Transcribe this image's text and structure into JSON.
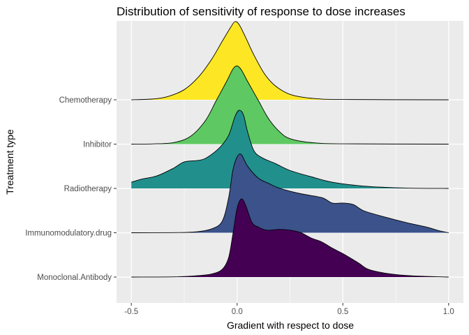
{
  "chart_data": {
    "type": "ridgeline",
    "title": "Distribution of sensitivity of response to dose increases",
    "xlabel": "Gradient with respect to dose",
    "ylabel": "Treatment type",
    "xlim": [
      -0.57,
      1.07
    ],
    "x_ticks": [
      -0.5,
      0.0,
      0.5,
      1.0
    ],
    "x_tick_labels": [
      "-0.5",
      "0.0",
      "0.5",
      "1.0"
    ],
    "grid": true,
    "legend": "none",
    "panel_background": "#ebebeb",
    "grid_color": "#ffffff",
    "categories": [
      "Monoclonal.Antibody",
      "Immunomodulatory.drug",
      "Radiotherapy",
      "Inhibitor",
      "Chemotherapy"
    ],
    "series": [
      {
        "category": "Monoclonal.Antibody",
        "color": "#440154",
        "range": [
          -0.5,
          1.0
        ],
        "density": [
          [
            -0.5,
            0
          ],
          [
            -0.3,
            0.003
          ],
          [
            -0.2,
            0.015
          ],
          [
            -0.12,
            0.04
          ],
          [
            -0.07,
            0.1
          ],
          [
            -0.04,
            0.25
          ],
          [
            -0.02,
            0.55
          ],
          [
            0.0,
            0.88
          ],
          [
            0.02,
            1.0
          ],
          [
            0.04,
            0.92
          ],
          [
            0.07,
            0.7
          ],
          [
            0.1,
            0.64
          ],
          [
            0.14,
            0.6
          ],
          [
            0.2,
            0.61
          ],
          [
            0.25,
            0.6
          ],
          [
            0.3,
            0.57
          ],
          [
            0.35,
            0.5
          ],
          [
            0.4,
            0.45
          ],
          [
            0.45,
            0.37
          ],
          [
            0.5,
            0.3
          ],
          [
            0.55,
            0.22
          ],
          [
            0.58,
            0.17
          ],
          [
            0.62,
            0.1
          ],
          [
            0.7,
            0.05
          ],
          [
            0.8,
            0.02
          ],
          [
            0.9,
            0.008
          ],
          [
            1.0,
            0
          ]
        ]
      },
      {
        "category": "Immunomodulatory.drug",
        "color": "#3b528b",
        "range": [
          -0.5,
          1.0
        ],
        "density": [
          [
            -0.5,
            0
          ],
          [
            -0.3,
            0.002
          ],
          [
            -0.2,
            0.01
          ],
          [
            -0.12,
            0.05
          ],
          [
            -0.07,
            0.15
          ],
          [
            -0.04,
            0.45
          ],
          [
            -0.02,
            0.8
          ],
          [
            0.0,
            0.97
          ],
          [
            0.02,
            1.0
          ],
          [
            0.05,
            0.85
          ],
          [
            0.1,
            0.7
          ],
          [
            0.15,
            0.63
          ],
          [
            0.2,
            0.57
          ],
          [
            0.3,
            0.5
          ],
          [
            0.4,
            0.45
          ],
          [
            0.45,
            0.38
          ],
          [
            0.5,
            0.38
          ],
          [
            0.55,
            0.36
          ],
          [
            0.6,
            0.28
          ],
          [
            0.7,
            0.2
          ],
          [
            0.8,
            0.13
          ],
          [
            0.9,
            0.07
          ],
          [
            0.95,
            0.03
          ],
          [
            1.0,
            0
          ]
        ]
      },
      {
        "category": "Radiotherapy",
        "color": "#21908d",
        "range": [
          -0.5,
          1.0
        ],
        "density": [
          [
            -0.5,
            0.08
          ],
          [
            -0.45,
            0.12
          ],
          [
            -0.38,
            0.16
          ],
          [
            -0.3,
            0.26
          ],
          [
            -0.25,
            0.34
          ],
          [
            -0.18,
            0.36
          ],
          [
            -0.14,
            0.4
          ],
          [
            -0.08,
            0.53
          ],
          [
            -0.04,
            0.68
          ],
          [
            -0.01,
            0.92
          ],
          [
            0.01,
            1.0
          ],
          [
            0.03,
            0.94
          ],
          [
            0.05,
            0.72
          ],
          [
            0.08,
            0.48
          ],
          [
            0.12,
            0.39
          ],
          [
            0.18,
            0.32
          ],
          [
            0.25,
            0.23
          ],
          [
            0.35,
            0.15
          ],
          [
            0.45,
            0.08
          ],
          [
            0.6,
            0.03
          ],
          [
            0.8,
            0.005
          ],
          [
            1.0,
            0
          ]
        ]
      },
      {
        "category": "Inhibitor",
        "color": "#5ec962",
        "range": [
          -0.5,
          1.0
        ],
        "density": [
          [
            -0.5,
            0
          ],
          [
            -0.4,
            0.003
          ],
          [
            -0.3,
            0.02
          ],
          [
            -0.22,
            0.1
          ],
          [
            -0.15,
            0.3
          ],
          [
            -0.1,
            0.55
          ],
          [
            -0.05,
            0.8
          ],
          [
            -0.02,
            0.96
          ],
          [
            0.0,
            1.0
          ],
          [
            0.02,
            0.95
          ],
          [
            0.05,
            0.8
          ],
          [
            0.1,
            0.56
          ],
          [
            0.15,
            0.32
          ],
          [
            0.2,
            0.16
          ],
          [
            0.25,
            0.07
          ],
          [
            0.35,
            0.02
          ],
          [
            0.5,
            0.004
          ],
          [
            1.0,
            0
          ]
        ]
      },
      {
        "category": "Chemotherapy",
        "color": "#fde725",
        "range": [
          -0.5,
          1.0
        ],
        "density": [
          [
            -0.5,
            0
          ],
          [
            -0.4,
            0.01
          ],
          [
            -0.33,
            0.04
          ],
          [
            -0.25,
            0.13
          ],
          [
            -0.18,
            0.3
          ],
          [
            -0.12,
            0.52
          ],
          [
            -0.07,
            0.75
          ],
          [
            -0.03,
            0.93
          ],
          [
            -0.01,
            1.0
          ],
          [
            0.01,
            0.96
          ],
          [
            0.04,
            0.8
          ],
          [
            0.08,
            0.57
          ],
          [
            0.13,
            0.33
          ],
          [
            0.18,
            0.18
          ],
          [
            0.25,
            0.07
          ],
          [
            0.35,
            0.02
          ],
          [
            0.5,
            0.004
          ],
          [
            1.0,
            0
          ]
        ]
      }
    ]
  }
}
